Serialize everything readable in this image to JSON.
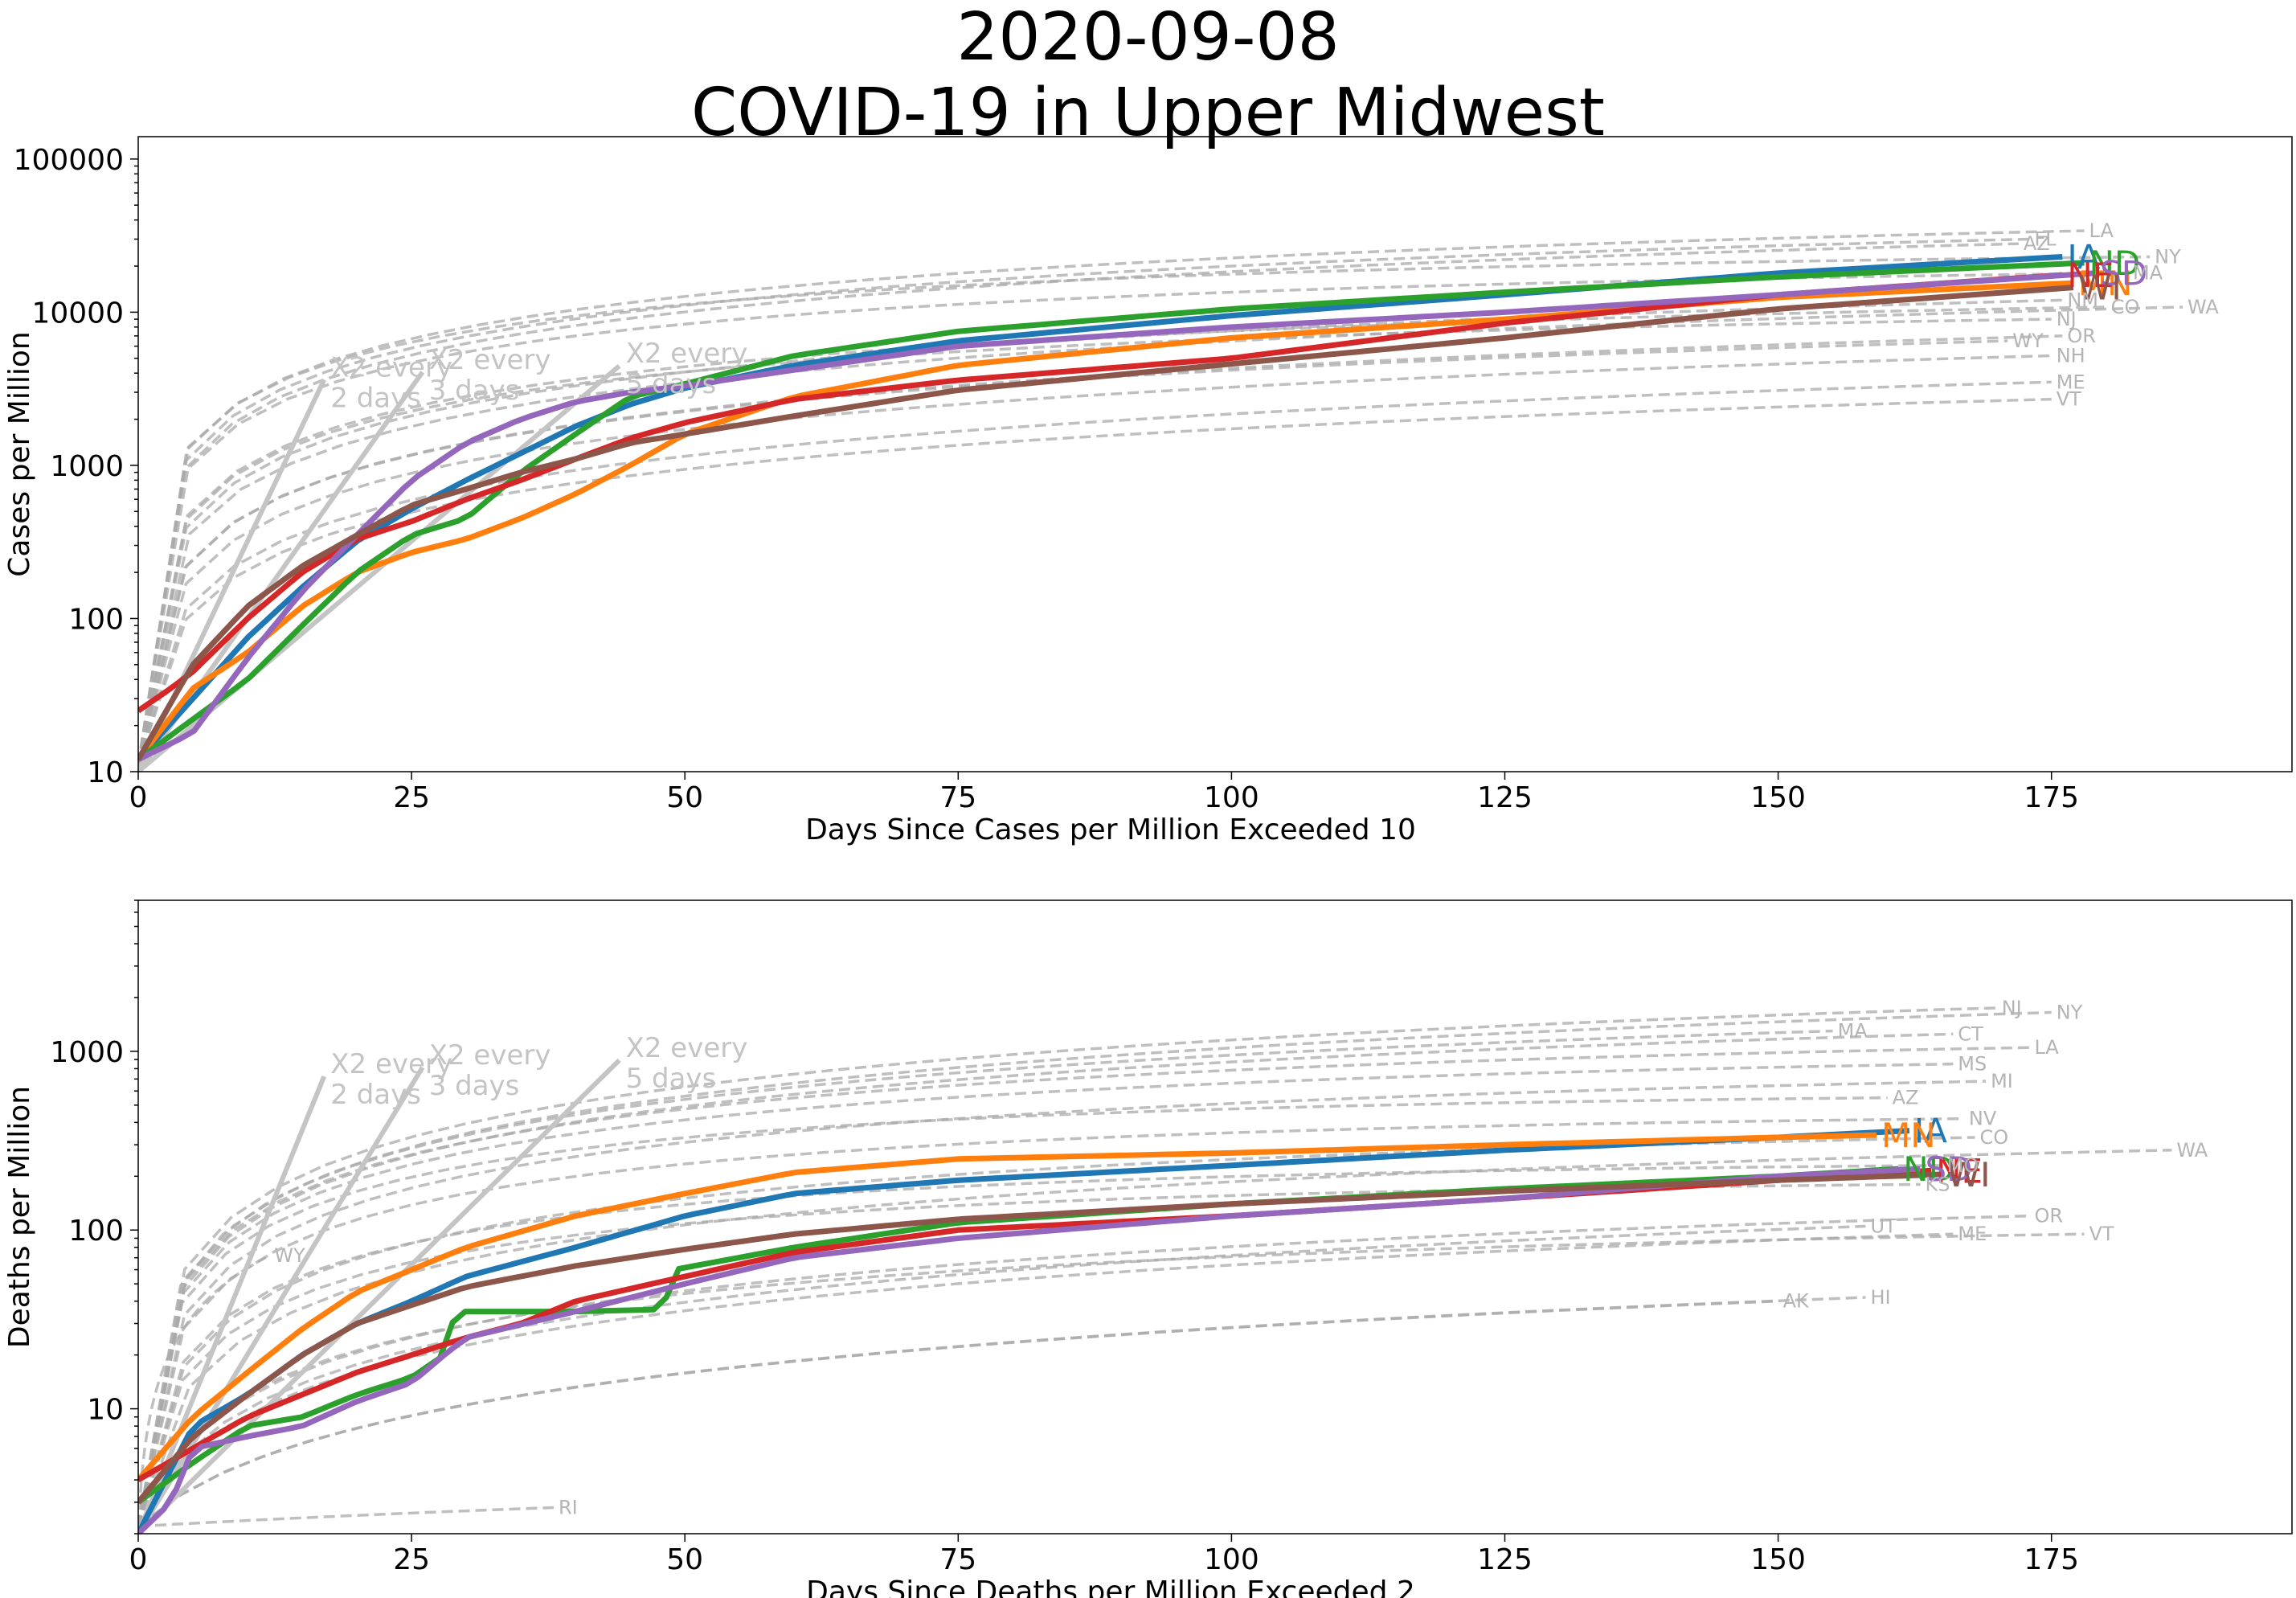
{
  "title": {
    "date": "2020-09-08",
    "subtitle": "COVID-19 in Upper Midwest"
  },
  "colors": {
    "background": "#gggggg",
    "axes": "#000000",
    "other_states": "#aaaaaa",
    "reference": "#c4c4c4",
    "IA": "#1f77b4",
    "MN": "#ff7f0e",
    "ND": "#2ca02c",
    "NE": "#d62728",
    "SD": "#9467bd",
    "WI": "#8c564b"
  },
  "chart_data": [
    {
      "type": "line",
      "yscale": "log",
      "xlabel": "Days Since Cases per Million Exceeded 10",
      "ylabel": "Cases per Million",
      "xlim": [
        0,
        197
      ],
      "ylim": [
        10,
        140000
      ],
      "xticks": [
        "0",
        "25",
        "50",
        "75",
        "100",
        "125",
        "150",
        "175"
      ],
      "yticks": [
        "10",
        "100",
        "1000",
        "10000",
        "100000"
      ],
      "reference_lines": [
        {
          "label": "X2 every\n2 days",
          "doubling_days": 2,
          "x_end": 17
        },
        {
          "label": "X2 every\n3 days",
          "doubling_days": 3,
          "x_end": 26
        },
        {
          "label": "X2 every\n5 days",
          "doubling_days": 5,
          "x_end": 44
        }
      ],
      "highlight_series": [
        {
          "name": "IA",
          "x": [
            0,
            5,
            10,
            15,
            20,
            25,
            30,
            35,
            40,
            45,
            50,
            60,
            75,
            100,
            125,
            150,
            176
          ],
          "y": [
            12,
            30,
            75,
            160,
            320,
            520,
            800,
            1200,
            1800,
            2500,
            3200,
            4500,
            6500,
            9500,
            13000,
            18000,
            23000
          ]
        },
        {
          "name": "MN",
          "x": [
            0,
            5,
            10,
            15,
            20,
            25,
            30,
            35,
            40,
            45,
            50,
            60,
            75,
            100,
            125,
            150,
            177
          ],
          "y": [
            12,
            35,
            60,
            120,
            200,
            270,
            330,
            450,
            650,
            1000,
            1600,
            2800,
            4500,
            6800,
            9000,
            12500,
            15500
          ]
        },
        {
          "name": "ND",
          "x": [
            0,
            5,
            10,
            15,
            20,
            25,
            30,
            35,
            40,
            45,
            50,
            60,
            75,
            100,
            125,
            150,
            178
          ],
          "y": [
            12,
            22,
            40,
            90,
            200,
            350,
            450,
            900,
            1600,
            2800,
            3400,
            5200,
            7500,
            10500,
            13500,
            17000,
            21000
          ]
        },
        {
          "name": "NE",
          "x": [
            0,
            3,
            5,
            10,
            15,
            20,
            25,
            30,
            35,
            40,
            45,
            50,
            60,
            75,
            100,
            125,
            150,
            176
          ],
          "y": [
            25,
            35,
            45,
            100,
            200,
            330,
            430,
            600,
            800,
            1100,
            1500,
            1900,
            2700,
            3600,
            5000,
            8500,
            13000,
            17500
          ]
        },
        {
          "name": "SD",
          "x": [
            0,
            5,
            10,
            15,
            20,
            25,
            30,
            35,
            40,
            45,
            50,
            60,
            75,
            100,
            125,
            150,
            179
          ],
          "y": [
            12,
            18,
            55,
            150,
            350,
            800,
            1400,
            2000,
            2600,
            3000,
            3300,
            4200,
            6000,
            8000,
            10000,
            13000,
            18000
          ]
        },
        {
          "name": "WI",
          "x": [
            0,
            5,
            10,
            15,
            20,
            25,
            30,
            35,
            40,
            45,
            50,
            60,
            75,
            100,
            125,
            150,
            177
          ],
          "y": [
            12,
            50,
            120,
            220,
            350,
            550,
            700,
            900,
            1100,
            1400,
            1600,
            2100,
            3100,
            4600,
            6800,
            10500,
            14500
          ]
        }
      ],
      "other_series": [
        {
          "name": "LA",
          "y_end": 34000,
          "x_end": 178,
          "a": 5500
        },
        {
          "name": "FL",
          "y_end": 30000,
          "x_end": 173,
          "a": 6000
        },
        {
          "name": "AZ",
          "y_end": 28000,
          "x_end": 172,
          "a": 7000
        },
        {
          "name": "NY",
          "y_end": 23000,
          "x_end": 184,
          "a": 2500
        },
        {
          "name": "MA",
          "y_end": 18000,
          "x_end": 182,
          "a": 2800
        },
        {
          "name": "NM",
          "y_end": 12000,
          "x_end": 176,
          "a": 9000
        },
        {
          "name": "CO",
          "y_end": 10800,
          "x_end": 180,
          "a": 4000
        },
        {
          "name": "WA",
          "y_end": 10800,
          "x_end": 187,
          "a": 10000
        },
        {
          "name": "NJ",
          "y_end": 9000,
          "x_end": 175,
          "a": 3000
        },
        {
          "name": "OR",
          "y_end": 7000,
          "x_end": 176,
          "a": 12000
        },
        {
          "name": "WY",
          "y_end": 6500,
          "x_end": 171,
          "a": 9000
        },
        {
          "name": "NH",
          "y_end": 5200,
          "x_end": 175,
          "a": 11000
        },
        {
          "name": "ME",
          "y_end": 3500,
          "x_end": 175,
          "a": 12000
        },
        {
          "name": "VT",
          "y_end": 2700,
          "x_end": 175,
          "a": 8000
        }
      ]
    },
    {
      "type": "line",
      "yscale": "log",
      "xlabel": "Days Since Deaths per Million Exceeded 2",
      "ylabel": "Deaths per Million",
      "xlim": [
        0,
        197
      ],
      "ylim": [
        2,
        7000
      ],
      "xticks": [
        "0",
        "25",
        "50",
        "75",
        "100",
        "125",
        "150",
        "175"
      ],
      "yticks": [
        "10",
        "100",
        "1000"
      ],
      "reference_lines": [
        {
          "label": "X2 every\n2 days",
          "doubling_days": 2,
          "x_end": 17
        },
        {
          "label": "X2 every\n3 days",
          "doubling_days": 3,
          "x_end": 26
        },
        {
          "label": "X2 every\n5 days",
          "doubling_days": 5,
          "x_end": 44
        }
      ],
      "highlight_series": [
        {
          "name": "IA",
          "x": [
            0,
            5,
            10,
            15,
            20,
            25,
            30,
            40,
            50,
            60,
            75,
            100,
            125,
            150,
            162
          ],
          "y": [
            2,
            8,
            12,
            20,
            30,
            40,
            55,
            80,
            120,
            160,
            190,
            230,
            280,
            330,
            360
          ]
        },
        {
          "name": "MN",
          "x": [
            0,
            5,
            10,
            15,
            20,
            25,
            30,
            40,
            50,
            60,
            75,
            100,
            125,
            150,
            159
          ],
          "y": [
            4,
            9,
            16,
            28,
            45,
            60,
            80,
            120,
            160,
            210,
            250,
            270,
            300,
            330,
            340
          ]
        },
        {
          "name": "ND",
          "x": [
            0,
            5,
            10,
            15,
            20,
            25,
            28,
            29,
            40,
            48,
            49,
            60,
            75,
            100,
            125,
            150,
            161
          ],
          "y": [
            3,
            5,
            8,
            9,
            12,
            15,
            20,
            35,
            35,
            36,
            60,
            80,
            110,
            140,
            170,
            200,
            220
          ]
        },
        {
          "name": "NE",
          "x": [
            0,
            5,
            10,
            15,
            20,
            25,
            30,
            35,
            40,
            50,
            60,
            75,
            100,
            125,
            150,
            164
          ],
          "y": [
            4,
            6,
            9,
            12,
            16,
            20,
            25,
            30,
            40,
            55,
            75,
            100,
            120,
            150,
            190,
            215
          ]
        },
        {
          "name": "SD",
          "x": [
            0,
            3,
            5,
            10,
            15,
            20,
            25,
            28,
            30,
            40,
            50,
            60,
            75,
            100,
            125,
            150,
            163
          ],
          "y": [
            2,
            3,
            6,
            7,
            8,
            11,
            14,
            20,
            25,
            35,
            50,
            70,
            90,
            120,
            150,
            200,
            220
          ]
        },
        {
          "name": "WI",
          "x": [
            0,
            5,
            10,
            15,
            20,
            25,
            30,
            40,
            50,
            60,
            75,
            100,
            125,
            150,
            165
          ],
          "y": [
            3,
            7,
            12,
            20,
            30,
            38,
            48,
            63,
            78,
            95,
            115,
            140,
            165,
            190,
            205
          ]
        }
      ],
      "other_series": [
        {
          "name": "NJ",
          "y_end": 1750,
          "x_end": 170,
          "a": 7000
        },
        {
          "name": "NY",
          "y_end": 1650,
          "x_end": 175,
          "a": 9000
        },
        {
          "name": "CT",
          "y_end": 1250,
          "x_end": 166,
          "a": 5000
        },
        {
          "name": "LA",
          "y_end": 1050,
          "x_end": 173,
          "a": 3000
        },
        {
          "name": "MA",
          "y_end": 1300,
          "x_end": 155,
          "a": 4500
        },
        {
          "name": "MS",
          "y_end": 850,
          "x_end": 166,
          "a": 2500
        },
        {
          "name": "MI",
          "y_end": 680,
          "x_end": 169,
          "a": 3000
        },
        {
          "name": "AZ",
          "y_end": 550,
          "x_end": 160,
          "a": 1500
        },
        {
          "name": "NV",
          "y_end": 420,
          "x_end": 167,
          "a": 1800
        },
        {
          "name": "CO",
          "y_end": 330,
          "x_end": 168,
          "a": 3000
        },
        {
          "name": "WA",
          "y_end": 280,
          "x_end": 186,
          "a": 5000
        },
        {
          "name": "MO",
          "y_end": 230,
          "x_end": 165,
          "a": 1500
        },
        {
          "name": "KS",
          "y_end": 180,
          "x_end": 163,
          "a": 1500
        },
        {
          "name": "OR",
          "y_end": 120,
          "x_end": 173,
          "a": 6000
        },
        {
          "name": "VT",
          "y_end": 95,
          "x_end": 178,
          "a": 3000
        },
        {
          "name": "ME",
          "y_end": 95,
          "x_end": 166,
          "a": 8000
        },
        {
          "name": "UT",
          "y_end": 105,
          "x_end": 158,
          "a": 9000
        },
        {
          "name": "HI",
          "y_end": 42,
          "x_end": 158,
          "a": 15000
        },
        {
          "name": "AK",
          "y_end": 40,
          "x_end": 150,
          "a": 14000
        },
        {
          "name": "WY",
          "y_end": 72,
          "x_end": 12,
          "a": 100
        },
        {
          "name": "RI",
          "y_end": 2.8,
          "x_end": 38,
          "a": 1000
        }
      ]
    }
  ]
}
